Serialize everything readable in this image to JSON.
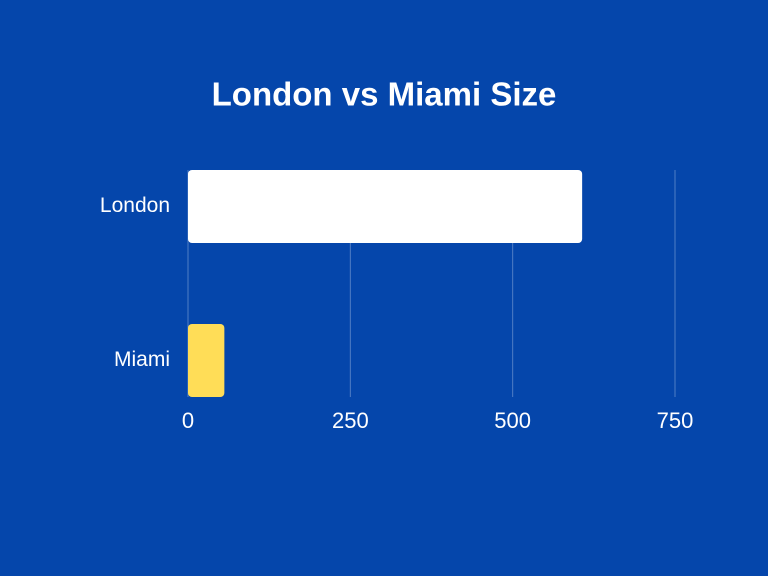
{
  "chart_data": {
    "type": "bar",
    "orientation": "horizontal",
    "title": "London vs Miami Size",
    "categories": [
      "London",
      "Miami"
    ],
    "values": [
      607,
      56
    ],
    "colors": [
      "#ffffff",
      "#ffdd57"
    ],
    "xlim": [
      0,
      750
    ],
    "xticks": [
      0,
      250,
      500,
      750
    ],
    "grid": true
  }
}
